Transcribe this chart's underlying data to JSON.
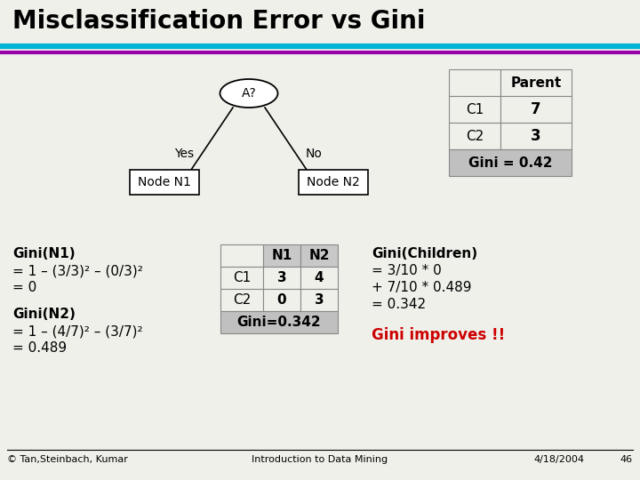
{
  "title": "Misclassification Error vs Gini",
  "title_fontsize": 20,
  "bg_color": "#f0f0eb",
  "line1_color": "#00b4d8",
  "line2_color": "#9900aa",
  "footer_left": "© Tan,Steinbach, Kumar",
  "footer_center": "Introduction to Data Mining",
  "footer_right": "4/18/2004",
  "footer_page": "46",
  "tree_node_label": "A?",
  "yes_label": "Yes",
  "no_label": "No",
  "left_node_label": "Node N1",
  "right_node_label": "Node N2",
  "parent_table_header": "Parent",
  "parent_table_rows": [
    [
      "C1",
      "7"
    ],
    [
      "C2",
      "3"
    ]
  ],
  "parent_gini_label": "Gini = 0.42",
  "gini_n1_lines": [
    "Gini(N1)",
    "= 1 – (3/3)² – (0/3)²",
    "= 0"
  ],
  "gini_n2_lines": [
    "Gini(N2)",
    "= 1 – (4/7)² – (3/7)²",
    "= 0.489"
  ],
  "child_table_headers": [
    "",
    "N1",
    "N2"
  ],
  "child_table_rows": [
    [
      "C1",
      "3",
      "4"
    ],
    [
      "C2",
      "0",
      "3"
    ]
  ],
  "child_gini_label": "Gini=0.342",
  "gini_children_lines": [
    "Gini(Children)",
    "= 3/10 * 0",
    "+ 7/10 * 0.489",
    "= 0.342"
  ],
  "gini_improves_label": "Gini improves !!",
  "gini_improves_color": "#cc0000",
  "white_color": "#ffffff",
  "table_header_bg": "#c8c8c8",
  "table_gini_bg": "#c0c0c0",
  "table_border": "#888888"
}
